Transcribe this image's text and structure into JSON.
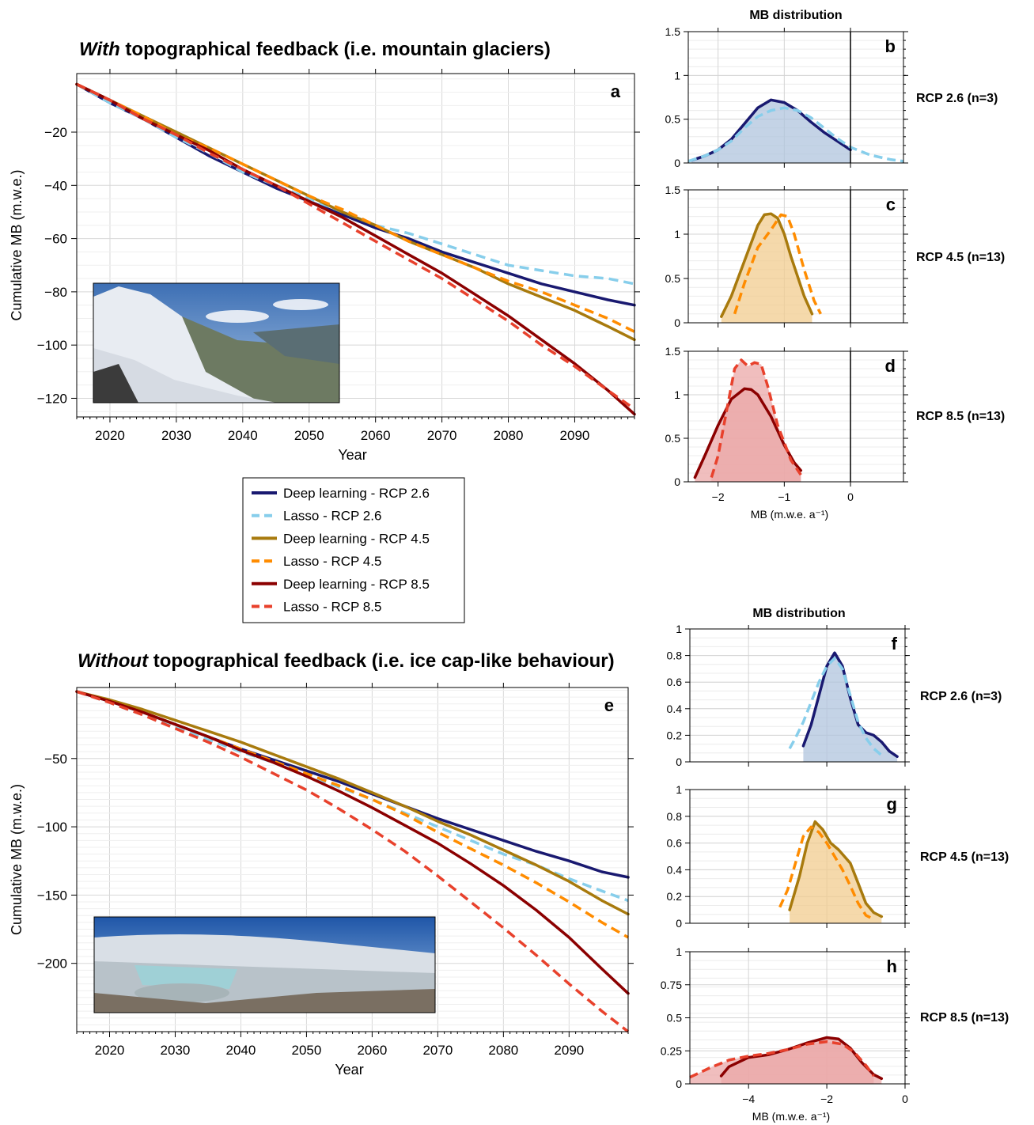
{
  "colors": {
    "dl26": "#191970",
    "lasso26": "#87ceeb",
    "dl45": "#a87a0d",
    "lasso45": "#ff8c00",
    "dl85": "#8b0000",
    "lasso85": "#e8412c",
    "fill26": "#b0c4de",
    "fill45": "#f1cc8f",
    "fill85": "#eba8a8"
  },
  "titles": {
    "top_emph": "With",
    "top_rest": " topographical feedback (i.e. mountain glaciers)",
    "bottom_emph": "Without",
    "bottom_rest": " topographical feedback (i.e. ice cap-like behaviour)",
    "dist_top": "MB distribution",
    "dist_bottom": "MB distribution"
  },
  "legend": [
    {
      "label": "Deep learning - RCP 2.6",
      "key": "dl26",
      "dashed": false
    },
    {
      "label": "Lasso - RCP 2.6",
      "key": "lasso26",
      "dashed": true
    },
    {
      "label": "Deep learning - RCP 4.5",
      "key": "dl45",
      "dashed": false
    },
    {
      "label": "Lasso - RCP 4.5",
      "key": "lasso45",
      "dashed": true
    },
    {
      "label": "Deep learning - RCP 8.5",
      "key": "dl85",
      "dashed": false
    },
    {
      "label": "Lasso - RCP 8.5",
      "key": "lasso85",
      "dashed": true
    }
  ],
  "chart_data": [
    {
      "id": "a",
      "type": "line",
      "panel_label": "a",
      "xlabel": "Year",
      "ylabel": "Cumulative MB (m.w.e.)",
      "xlim": [
        2015,
        2099
      ],
      "ylim": [
        -127,
        2
      ],
      "xticks": [
        2020,
        2030,
        2040,
        2050,
        2060,
        2070,
        2080,
        2090
      ],
      "yticks": [
        -20,
        -40,
        -60,
        -80,
        -100,
        -120
      ],
      "x": [
        2015,
        2020,
        2025,
        2030,
        2035,
        2040,
        2045,
        2050,
        2055,
        2060,
        2065,
        2070,
        2075,
        2080,
        2085,
        2090,
        2095,
        2099
      ],
      "series": [
        {
          "name": "Deep learning - RCP 2.6",
          "key": "dl26",
          "dashed": false,
          "values": [
            -2,
            -9,
            -15,
            -22,
            -29,
            -35,
            -41,
            -46,
            -51,
            -56,
            -60,
            -65,
            -69,
            -73,
            -77,
            -80,
            -83,
            -85
          ]
        },
        {
          "name": "Lasso - RCP 2.6",
          "key": "lasso26",
          "dashed": true,
          "values": [
            -2,
            -9,
            -15,
            -22,
            -28,
            -35,
            -40,
            -45,
            -50,
            -55,
            -58,
            -62,
            -66,
            -70,
            -72,
            -74,
            -75,
            -77
          ]
        },
        {
          "name": "Deep learning - RCP 4.5",
          "key": "dl45",
          "dashed": false,
          "values": [
            -2,
            -8,
            -14,
            -20,
            -26,
            -32,
            -38,
            -44,
            -50,
            -55,
            -61,
            -66,
            -71,
            -77,
            -82,
            -87,
            -93,
            -98
          ]
        },
        {
          "name": "Lasso - RCP 4.5",
          "key": "lasso45",
          "dashed": true,
          "values": [
            -2,
            -8,
            -14,
            -21,
            -26,
            -32,
            -38,
            -44,
            -49,
            -55,
            -61,
            -66,
            -71,
            -76,
            -80,
            -85,
            -90,
            -95
          ]
        },
        {
          "name": "Deep learning - RCP 8.5",
          "key": "dl85",
          "dashed": false,
          "values": [
            -2,
            -8,
            -15,
            -21,
            -27,
            -34,
            -40,
            -46,
            -52,
            -59,
            -66,
            -73,
            -81,
            -89,
            -98,
            -107,
            -117,
            -126
          ]
        },
        {
          "name": "Lasso - RCP 8.5",
          "key": "lasso85",
          "dashed": true,
          "values": [
            -2,
            -8,
            -15,
            -21,
            -28,
            -34,
            -40,
            -47,
            -54,
            -61,
            -68,
            -75,
            -83,
            -91,
            -100,
            -108,
            -117,
            -124
          ]
        }
      ]
    },
    {
      "id": "e",
      "type": "line",
      "panel_label": "e",
      "xlabel": "Year",
      "ylabel": "Cumulative MB (m.w.e.)",
      "xlim": [
        2015,
        2099
      ],
      "ylim": [
        -250,
        2
      ],
      "xticks": [
        2020,
        2030,
        2040,
        2050,
        2060,
        2070,
        2080,
        2090
      ],
      "yticks": [
        -50,
        -100,
        -150,
        -200
      ],
      "x": [
        2015,
        2020,
        2025,
        2030,
        2035,
        2040,
        2045,
        2050,
        2055,
        2060,
        2065,
        2070,
        2075,
        2080,
        2085,
        2090,
        2095,
        2099
      ],
      "series": [
        {
          "name": "Deep learning - RCP 2.6",
          "key": "dl26",
          "dashed": false,
          "values": [
            -1,
            -8,
            -16,
            -25,
            -34,
            -43,
            -51,
            -59,
            -67,
            -76,
            -85,
            -94,
            -102,
            -110,
            -118,
            -125,
            -133,
            -137
          ]
        },
        {
          "name": "Lasso - RCP 2.6",
          "key": "lasso26",
          "dashed": true,
          "values": [
            -1,
            -9,
            -18,
            -27,
            -36,
            -45,
            -53,
            -62,
            -71,
            -80,
            -90,
            -100,
            -110,
            -120,
            -128,
            -138,
            -147,
            -154
          ]
        },
        {
          "name": "Deep learning - RCP 4.5",
          "key": "dl45",
          "dashed": false,
          "values": [
            -1,
            -7,
            -14,
            -22,
            -30,
            -38,
            -47,
            -56,
            -65,
            -75,
            -85,
            -96,
            -106,
            -117,
            -128,
            -140,
            -154,
            -164
          ]
        },
        {
          "name": "Lasso - RCP 4.5",
          "key": "lasso45",
          "dashed": true,
          "values": [
            -1,
            -8,
            -16,
            -25,
            -34,
            -43,
            -52,
            -61,
            -70,
            -80,
            -91,
            -104,
            -116,
            -128,
            -141,
            -155,
            -170,
            -181
          ]
        },
        {
          "name": "Deep learning - RCP 8.5",
          "key": "dl85",
          "dashed": false,
          "values": [
            -1,
            -8,
            -16,
            -25,
            -34,
            -44,
            -53,
            -63,
            -74,
            -86,
            -99,
            -112,
            -127,
            -143,
            -161,
            -181,
            -204,
            -222
          ]
        },
        {
          "name": "Lasso - RCP 8.5",
          "key": "lasso85",
          "dashed": true,
          "values": [
            -1,
            -9,
            -18,
            -28,
            -38,
            -49,
            -61,
            -73,
            -87,
            -102,
            -118,
            -136,
            -155,
            -174,
            -194,
            -215,
            -235,
            -250
          ]
        }
      ]
    },
    {
      "id": "b",
      "type": "area",
      "panel_label": "b",
      "row_label": "RCP 2.6 (n=3)",
      "xlim": [
        -2.45,
        0.8
      ],
      "ylim": [
        0,
        1.5
      ],
      "yticks": [
        0,
        0.5,
        1,
        1.5
      ],
      "ytick_labels": [
        "0",
        "0.5",
        "1",
        "1.5"
      ],
      "xticks": [
        -2,
        -1,
        0
      ],
      "xtick_labels": [],
      "vline": 0,
      "fill_key": "fill26",
      "series": [
        {
          "name": "Deep learning - RCP 2.6",
          "key": "dl26",
          "dashed": false,
          "fill": true,
          "x": [
            -2.4,
            -2.2,
            -2.0,
            -1.8,
            -1.6,
            -1.4,
            -1.2,
            -1.0,
            -0.8,
            -0.6,
            -0.4,
            -0.2,
            0.0
          ],
          "values": [
            0.03,
            0.08,
            0.15,
            0.27,
            0.45,
            0.63,
            0.72,
            0.69,
            0.6,
            0.47,
            0.35,
            0.25,
            0.15
          ]
        },
        {
          "name": "Lasso - RCP 2.6",
          "key": "lasso26",
          "dashed": true,
          "fill": false,
          "x": [
            -2.45,
            -2.2,
            -2.0,
            -1.8,
            -1.6,
            -1.4,
            -1.2,
            -1.0,
            -0.8,
            -0.6,
            -0.4,
            -0.2,
            0.0,
            0.3,
            0.6,
            0.8
          ],
          "values": [
            0.02,
            0.08,
            0.15,
            0.25,
            0.4,
            0.53,
            0.6,
            0.63,
            0.6,
            0.52,
            0.4,
            0.28,
            0.18,
            0.09,
            0.04,
            0.02
          ]
        }
      ]
    },
    {
      "id": "c",
      "type": "area",
      "panel_label": "c",
      "row_label": "RCP 4.5 (n=13)",
      "xlim": [
        -2.45,
        0.8
      ],
      "ylim": [
        0,
        1.5
      ],
      "yticks": [
        0,
        0.5,
        1,
        1.5
      ],
      "ytick_labels": [
        "0",
        "0.5",
        "1",
        "1.5"
      ],
      "xticks": [
        -2,
        -1,
        0
      ],
      "xtick_labels": [],
      "vline": 0,
      "fill_key": "fill45",
      "series": [
        {
          "name": "Deep learning - RCP 4.5",
          "key": "dl45",
          "dashed": false,
          "fill": true,
          "x": [
            -1.95,
            -1.8,
            -1.6,
            -1.4,
            -1.3,
            -1.2,
            -1.1,
            -1.0,
            -0.9,
            -0.7,
            -0.58
          ],
          "values": [
            0.07,
            0.3,
            0.7,
            1.1,
            1.22,
            1.23,
            1.18,
            1.0,
            0.75,
            0.3,
            0.1
          ]
        },
        {
          "name": "Lasso - RCP 4.5",
          "key": "lasso45",
          "dashed": true,
          "fill": false,
          "x": [
            -1.75,
            -1.6,
            -1.4,
            -1.2,
            -1.05,
            -0.95,
            -0.85,
            -0.7,
            -0.55,
            -0.45
          ],
          "values": [
            0.1,
            0.45,
            0.85,
            1.05,
            1.22,
            1.2,
            1.0,
            0.6,
            0.25,
            0.1
          ]
        }
      ]
    },
    {
      "id": "d",
      "type": "area",
      "panel_label": "d",
      "row_label": "RCP 8.5 (n=13)",
      "xlim": [
        -2.45,
        0.8
      ],
      "ylim": [
        0,
        1.5
      ],
      "yticks": [
        0,
        0.5,
        1,
        1.5
      ],
      "ytick_labels": [
        "0",
        "0.5",
        "1",
        "1.5"
      ],
      "xticks": [
        -2,
        -1,
        0
      ],
      "xtick_labels": [
        "−2",
        "−1",
        "0"
      ],
      "xlabel": "MB (m.w.e. a⁻¹)",
      "vline": 0,
      "fill_key": "fill85",
      "series": [
        {
          "name": "Deep learning - RCP 8.5",
          "key": "dl85",
          "dashed": false,
          "fill": true,
          "x": [
            -2.35,
            -2.2,
            -2.0,
            -1.8,
            -1.6,
            -1.5,
            -1.4,
            -1.2,
            -1.0,
            -0.85,
            -0.75
          ],
          "values": [
            0.05,
            0.3,
            0.65,
            0.95,
            1.07,
            1.06,
            1.0,
            0.75,
            0.42,
            0.22,
            0.13
          ]
        },
        {
          "name": "Lasso - RCP 8.5",
          "key": "lasso85",
          "dashed": true,
          "fill": true,
          "x": [
            -2.1,
            -2.0,
            -1.85,
            -1.75,
            -1.65,
            -1.55,
            -1.45,
            -1.35,
            -1.25,
            -1.1,
            -0.9,
            -0.75
          ],
          "values": [
            0.05,
            0.3,
            0.9,
            1.3,
            1.4,
            1.33,
            1.37,
            1.35,
            1.1,
            0.65,
            0.25,
            0.08
          ]
        }
      ]
    },
    {
      "id": "f",
      "type": "area",
      "panel_label": "f",
      "row_label": "RCP 2.6 (n=3)",
      "xlim": [
        -5.5,
        0
      ],
      "ylim": [
        0,
        1
      ],
      "yticks": [
        0,
        0.2,
        0.4,
        0.6,
        0.8,
        1
      ],
      "ytick_labels": [
        "0",
        "0.2",
        "0.4",
        "0.6",
        "0.8",
        "1"
      ],
      "xticks": [
        -4,
        -2,
        0
      ],
      "xtick_labels": [],
      "fill_key": "fill26",
      "series": [
        {
          "name": "Deep learning - RCP 2.6",
          "key": "dl26",
          "dashed": false,
          "fill": true,
          "x": [
            -2.6,
            -2.4,
            -2.2,
            -2.0,
            -1.8,
            -1.6,
            -1.4,
            -1.2,
            -1.0,
            -0.8,
            -0.6,
            -0.4,
            -0.2
          ],
          "values": [
            0.12,
            0.28,
            0.5,
            0.72,
            0.82,
            0.72,
            0.48,
            0.28,
            0.22,
            0.2,
            0.15,
            0.08,
            0.04
          ]
        },
        {
          "name": "Lasso - RCP 2.6",
          "key": "lasso26",
          "dashed": true,
          "fill": false,
          "x": [
            -2.95,
            -2.8,
            -2.6,
            -2.4,
            -2.2,
            -2.0,
            -1.8,
            -1.6,
            -1.4,
            -1.2,
            -1.0,
            -0.8,
            -0.6
          ],
          "values": [
            0.1,
            0.18,
            0.3,
            0.45,
            0.6,
            0.72,
            0.78,
            0.7,
            0.5,
            0.3,
            0.18,
            0.1,
            0.05
          ]
        }
      ]
    },
    {
      "id": "g",
      "type": "area",
      "panel_label": "g",
      "row_label": "RCP 4.5 (n=13)",
      "xlim": [
        -5.5,
        0
      ],
      "ylim": [
        0,
        1
      ],
      "yticks": [
        0,
        0.2,
        0.4,
        0.6,
        0.8,
        1
      ],
      "ytick_labels": [
        "0",
        "0.2",
        "0.4",
        "0.6",
        "0.8",
        "1"
      ],
      "xticks": [
        -4,
        -2,
        0
      ],
      "xtick_labels": [],
      "fill_key": "fill45",
      "series": [
        {
          "name": "Deep learning - RCP 4.5",
          "key": "dl45",
          "dashed": false,
          "fill": true,
          "x": [
            -2.95,
            -2.7,
            -2.5,
            -2.3,
            -2.1,
            -1.9,
            -1.7,
            -1.4,
            -1.2,
            -1.0,
            -0.8,
            -0.6
          ],
          "values": [
            0.1,
            0.35,
            0.6,
            0.76,
            0.7,
            0.6,
            0.55,
            0.45,
            0.3,
            0.15,
            0.08,
            0.05
          ]
        },
        {
          "name": "Lasso - RCP 4.5",
          "key": "lasso45",
          "dashed": true,
          "fill": false,
          "x": [
            -3.2,
            -3.0,
            -2.8,
            -2.6,
            -2.4,
            -2.2,
            -2.0,
            -1.8,
            -1.6,
            -1.4,
            -1.2,
            -1.0,
            -0.8
          ],
          "values": [
            0.12,
            0.25,
            0.45,
            0.65,
            0.72,
            0.68,
            0.6,
            0.5,
            0.4,
            0.28,
            0.15,
            0.06,
            0.03
          ]
        }
      ]
    },
    {
      "id": "h",
      "type": "area",
      "panel_label": "h",
      "row_label": "RCP 8.5 (n=13)",
      "xlim": [
        -5.5,
        0
      ],
      "ylim": [
        0,
        1
      ],
      "yticks": [
        0,
        0.25,
        0.5,
        0.75,
        1
      ],
      "ytick_labels": [
        "0",
        "0.25",
        "0.5",
        "0.75",
        "1"
      ],
      "xticks": [
        -4,
        -2,
        0
      ],
      "xtick_labels": [
        "−4",
        "−2",
        "0"
      ],
      "xlabel": "MB (m.w.e. a⁻¹)",
      "fill_key": "fill85",
      "series": [
        {
          "name": "Deep learning - RCP 8.5",
          "key": "dl85",
          "dashed": false,
          "fill": true,
          "x": [
            -4.7,
            -4.5,
            -4.0,
            -3.5,
            -3.0,
            -2.5,
            -2.0,
            -1.7,
            -1.4,
            -1.1,
            -0.8,
            -0.6
          ],
          "values": [
            0.06,
            0.13,
            0.2,
            0.22,
            0.26,
            0.31,
            0.35,
            0.34,
            0.27,
            0.16,
            0.07,
            0.04
          ]
        },
        {
          "name": "Lasso - RCP 8.5",
          "key": "lasso85",
          "dashed": true,
          "fill": true,
          "x": [
            -5.5,
            -5.0,
            -4.5,
            -4.0,
            -3.5,
            -3.0,
            -2.5,
            -2.0,
            -1.6,
            -1.3,
            -1.0,
            -0.8
          ],
          "values": [
            0.05,
            0.12,
            0.18,
            0.21,
            0.23,
            0.26,
            0.3,
            0.32,
            0.3,
            0.24,
            0.14,
            0.06
          ]
        }
      ]
    }
  ]
}
